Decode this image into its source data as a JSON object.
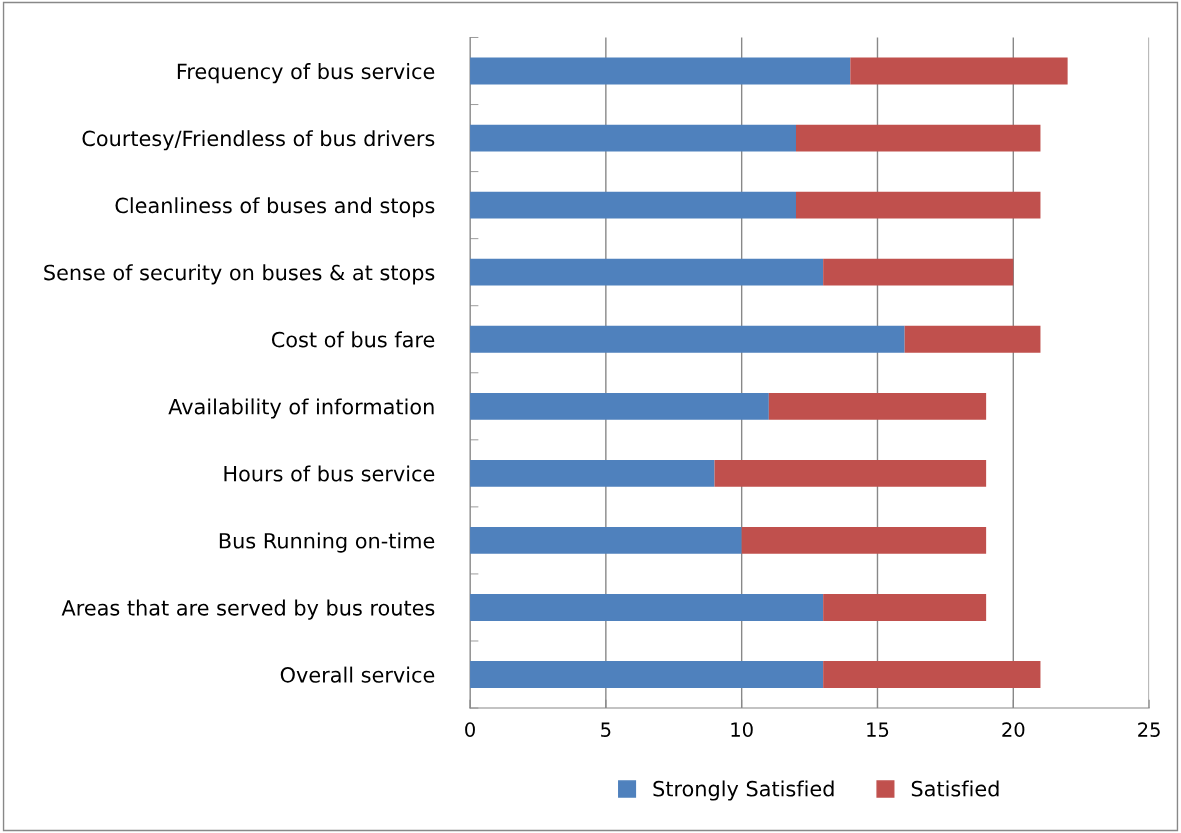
{
  "chart_data": {
    "type": "bar",
    "orientation": "horizontal",
    "stacked": true,
    "categories": [
      "Frequency of bus service",
      "Courtesy/Friendless of bus drivers",
      "Cleanliness of buses and stops",
      "Sense of security on buses & at stops",
      "Cost of bus fare",
      "Availability of information",
      "Hours of bus service",
      "Bus Running on-time",
      "Areas that are served by bus routes",
      "Overall service"
    ],
    "series": [
      {
        "name": "Strongly Satisfied",
        "color": "#4f81bd",
        "values": [
          14,
          12,
          12,
          13,
          16,
          11,
          9,
          10,
          13,
          13
        ]
      },
      {
        "name": "Satisfied",
        "color": "#c0504d",
        "values": [
          8,
          9,
          9,
          7,
          5,
          8,
          10,
          9,
          6,
          8
        ]
      }
    ],
    "xlim": [
      0,
      25
    ],
    "xticks": [
      0,
      5,
      10,
      15,
      20,
      25
    ],
    "grid": "x",
    "legend": "bottom"
  }
}
